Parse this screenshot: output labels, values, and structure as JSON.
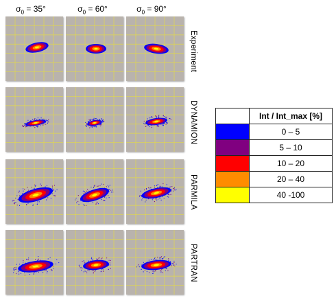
{
  "columns": [
    {
      "symbol": "σ",
      "sub": "0",
      "rest": " = 35°"
    },
    {
      "symbol": "σ",
      "sub": "0",
      "rest": " = 60°"
    },
    {
      "symbol": "σ",
      "sub": "0",
      "rest": " = 90°"
    }
  ],
  "rows": [
    {
      "label": "Experiment"
    },
    {
      "label": "DYNAMION"
    },
    {
      "label": "PARMILA"
    },
    {
      "label": "PARTRAN"
    }
  ],
  "legend": {
    "header": "Int / Int_max [%]",
    "items": [
      {
        "color": "#0000ff",
        "range": "0 – 5"
      },
      {
        "color": "#800080",
        "range": "5 – 10"
      },
      {
        "color": "#ff0000",
        "range": "10 – 20"
      },
      {
        "color": "#ff8c00",
        "range": "20 – 40"
      },
      {
        "color": "#ffff00",
        "range": "40 -100"
      }
    ]
  },
  "colors": {
    "panel_background": "#b9b3ad",
    "grid": "#e2d84a"
  }
}
